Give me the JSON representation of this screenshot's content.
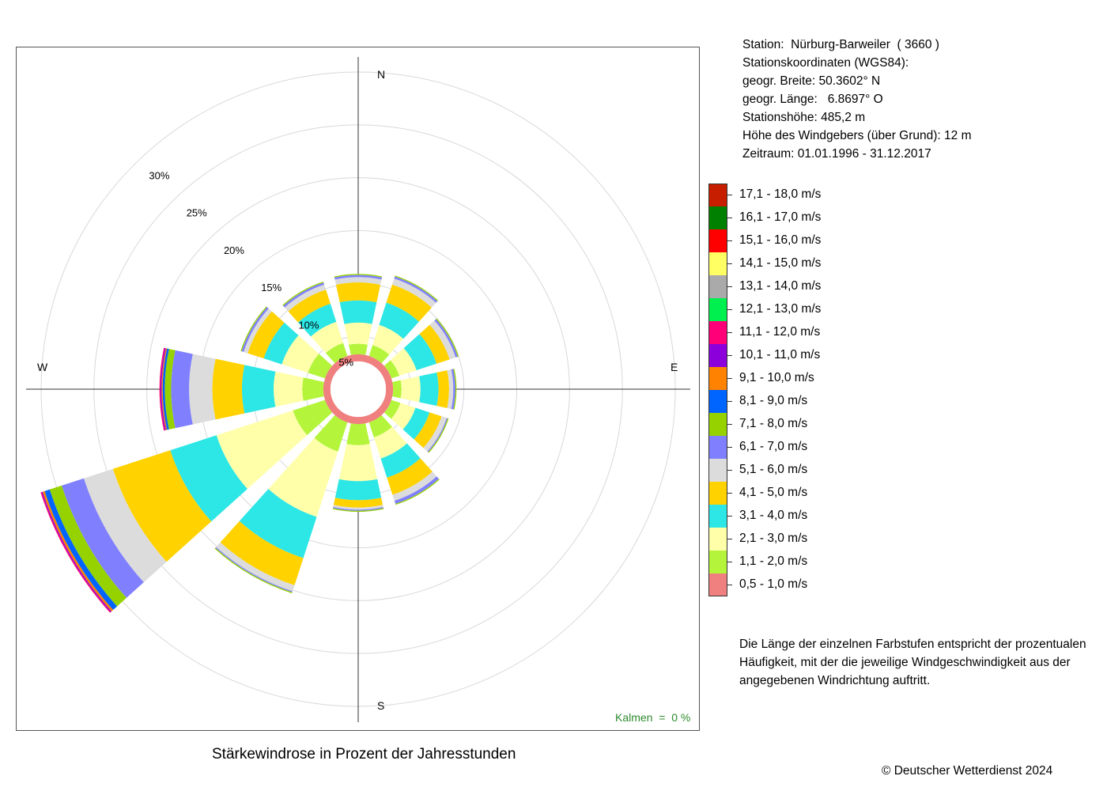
{
  "station": {
    "name_line": "Station:  Nürburg-Barweiler  ( 3660 )",
    "coords_heading": "Stationskoordinaten (WGS84):",
    "latitude_line": "geogr. Breite: 50.3602° N",
    "longitude_line": "geogr. Länge:   6.8697° O",
    "elevation_line": "Stationshöhe: 485,2 m",
    "sensor_height_line": "Höhe des Windgebers (über Grund): 12 m",
    "period_line": "Zeitraum: 01.01.1996 - 31.12.2017"
  },
  "note": "Die Länge der einzelnen Farbstufen entspricht der prozentualen Häufigkeit, mit der die jeweilige Windgeschwindigkeit aus der angegebenen Windrichtung auftritt.",
  "copyright": "© Deutscher Wetterdienst  2024",
  "calm_label": "Kalmen  =  0 %",
  "chart_data": {
    "type": "windrose",
    "title": "Stärkewindrose in Prozent der Jahresstunden",
    "direction_labels": [
      "N",
      "E",
      "S",
      "W"
    ],
    "ring_labels": [
      "5%",
      "10%",
      "15%",
      "20%",
      "25%",
      "30%"
    ],
    "ring_values": [
      5,
      10,
      15,
      20,
      25,
      30
    ],
    "r_max": 30,
    "sector_directions_deg": [
      0,
      30,
      60,
      90,
      120,
      150,
      180,
      210,
      240,
      270,
      300,
      330
    ],
    "speed_classes": [
      {
        "label": "0,5 - 1,0 m/s",
        "color": "#f08080"
      },
      {
        "label": "1,1 - 2,0 m/s",
        "color": "#b4f53c"
      },
      {
        "label": "2,1 - 3,0 m/s",
        "color": "#ffffaa"
      },
      {
        "label": "3,1 - 4,0 m/s",
        "color": "#2de6e6"
      },
      {
        "label": "4,1 - 5,0 m/s",
        "color": "#ffd200"
      },
      {
        "label": "5,1 - 6,0 m/s",
        "color": "#dcdcdc"
      },
      {
        "label": "6,1 - 7,0 m/s",
        "color": "#8080ff"
      },
      {
        "label": "7,1 - 8,0 m/s",
        "color": "#96d200"
      },
      {
        "label": "8,1 - 9,0 m/s",
        "color": "#0064ff"
      },
      {
        "label": "9,1 - 10,0 m/s",
        "color": "#ff8200"
      },
      {
        "label": "10,1 - 11,0 m/s",
        "color": "#8c00dc"
      },
      {
        "label": "11,1 - 12,0 m/s",
        "color": "#ff0078"
      },
      {
        "label": "12,1 - 13,0 m/s",
        "color": "#00f050"
      },
      {
        "label": "13,1 - 14,0 m/s",
        "color": "#aaaaaa"
      },
      {
        "label": "14,1 - 15,0 m/s",
        "color": "#ffff64"
      },
      {
        "label": "15,1 - 16,0 m/s",
        "color": "#ff0000"
      },
      {
        "label": "16,1 - 17,0 m/s",
        "color": "#008000"
      },
      {
        "label": "17,1 - 18,0 m/s",
        "color": "#c81e00"
      }
    ],
    "sector_cumulative_percent": [
      [
        3.3,
        4.3,
        6.3,
        8.4,
        10.1,
        10.6,
        10.8,
        10.9
      ],
      [
        3.3,
        4.4,
        6.4,
        8.6,
        10.4,
        11.0,
        11.2,
        11.3
      ],
      [
        3.3,
        4.1,
        5.8,
        7.8,
        9.1,
        9.7,
        9.9,
        10.0
      ],
      [
        3.3,
        4.1,
        5.9,
        7.6,
        8.6,
        9.0,
        9.2,
        9.3
      ],
      [
        3.3,
        4.2,
        5.7,
        7.1,
        8.3,
        8.8,
        8.9,
        9.0
      ],
      [
        3.3,
        4.8,
        6.9,
        8.8,
        10.5,
        11.1,
        11.4,
        11.5
      ],
      [
        3.3,
        5.3,
        8.7,
        10.5,
        11.2,
        11.4,
        11.5,
        11.6
      ],
      [
        3.3,
        6.2,
        12.7,
        16.8,
        19.5,
        20.1,
        20.2,
        20.3
      ],
      [
        3.3,
        6.5,
        14.1,
        18.7,
        24.4,
        27.3,
        29.5,
        30.7,
        31.2,
        31.4,
        31.5,
        31.6
      ],
      [
        3.3,
        5.3,
        8.0,
        11.0,
        13.8,
        16.0,
        17.7,
        18.3,
        18.5,
        18.6,
        18.7,
        18.8
      ],
      [
        3.3,
        5.0,
        7.6,
        9.4,
        11.0,
        11.4,
        11.6,
        11.7
      ],
      [
        3.3,
        4.6,
        6.7,
        8.5,
        9.9,
        10.4,
        10.6,
        10.7
      ]
    ]
  }
}
